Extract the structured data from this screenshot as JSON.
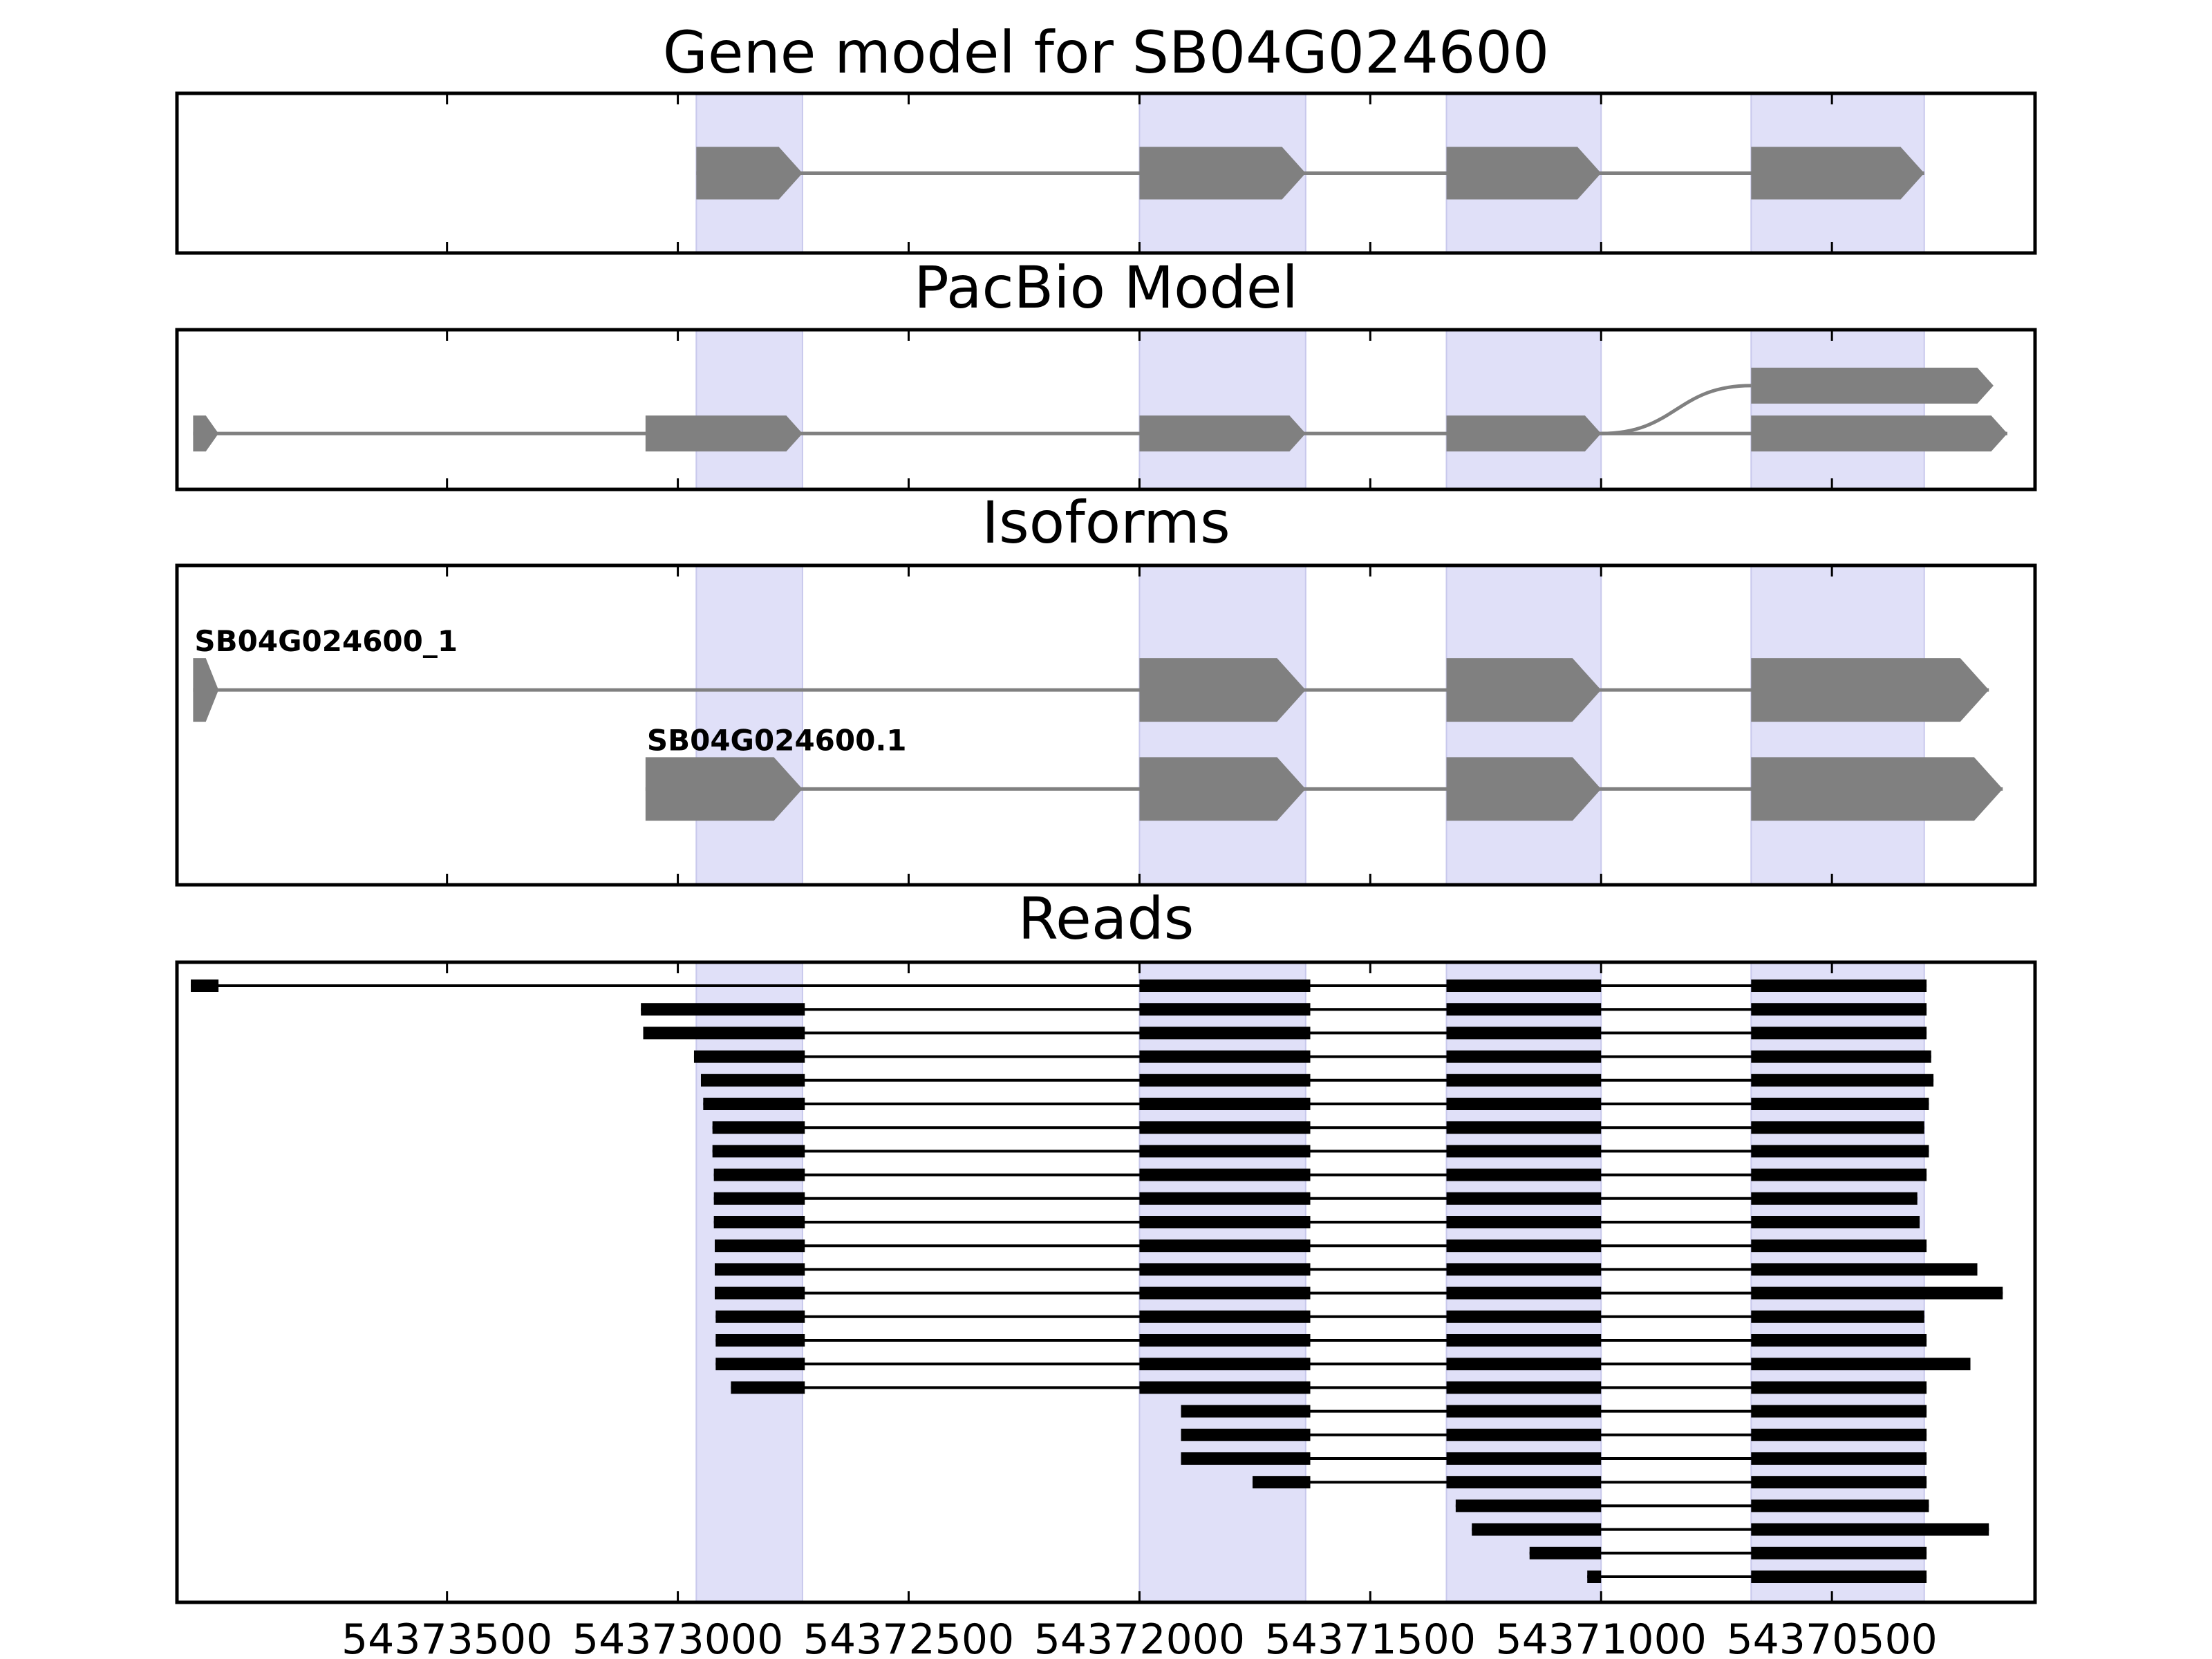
{
  "figure": {
    "colors": {
      "highlight": "#e0e0f8",
      "model": "#808080",
      "reads": "#000000",
      "frame": "#000000"
    }
  },
  "chart_data": {
    "type": "gene-model",
    "x_axis": {
      "reversed": true,
      "xlim": [
        54374085,
        54370060
      ],
      "ticks": [
        54373500,
        54373000,
        54372500,
        54372000,
        54371500,
        54371000,
        54370500
      ],
      "tick_labels": [
        "54373500",
        "54373000",
        "54372500",
        "54372000",
        "54371500",
        "54371000",
        "54370500"
      ]
    },
    "highlight_regions": [
      [
        54372960,
        54372730
      ],
      [
        54372000,
        54371640
      ],
      [
        54371335,
        54371000
      ],
      [
        54370675,
        54370300
      ]
    ],
    "panels": [
      {
        "title": "Gene model for SB04G024600",
        "tracks": [
          {
            "row": 0.5,
            "exons": [
              [
                54372960,
                54372730
              ],
              [
                54372000,
                54371640
              ],
              [
                54371335,
                54371000
              ],
              [
                54370675,
                54370300
              ]
            ]
          }
        ]
      },
      {
        "title": "PacBio Model",
        "tracks": [
          {
            "row": 0.35,
            "exons": [
              [
                54370675,
                54370150
              ]
            ],
            "branch_from": 54371000
          },
          {
            "row": 0.65,
            "exons": [
              [
                54374050,
                54373995
              ],
              [
                54373070,
                54372730
              ],
              [
                54372000,
                54371640
              ],
              [
                54371335,
                54371000
              ],
              [
                54370675,
                54370120
              ]
            ]
          }
        ]
      },
      {
        "title": "Isoforms",
        "tracks": [
          {
            "row": 0.39,
            "label": "SB04G024600_1",
            "exons": [
              [
                54374050,
                54373995
              ],
              [
                54372000,
                54371640
              ],
              [
                54371335,
                54371000
              ],
              [
                54370675,
                54370160
              ]
            ]
          },
          {
            "row": 0.7,
            "label": "SB04G024600.1",
            "exons": [
              [
                54373070,
                54372730
              ],
              [
                54372000,
                54371640
              ],
              [
                54371335,
                54371000
              ],
              [
                54370675,
                54370130
              ]
            ]
          }
        ]
      },
      {
        "title": "Reads",
        "reads": [
          [
            [
              54374055,
              54373995
            ],
            [
              54372000,
              54371630
            ],
            [
              54371335,
              54371000
            ],
            [
              54370675,
              54370295
            ]
          ],
          [
            [
              54373080,
              54372725
            ],
            [
              54372000,
              54371630
            ],
            [
              54371335,
              54371000
            ],
            [
              54370675,
              54370295
            ]
          ],
          [
            [
              54373075,
              54372725
            ],
            [
              54372000,
              54371630
            ],
            [
              54371335,
              54371000
            ],
            [
              54370675,
              54370295
            ]
          ],
          [
            [
              54372965,
              54372725
            ],
            [
              54372000,
              54371630
            ],
            [
              54371335,
              54371000
            ],
            [
              54370675,
              54370285
            ]
          ],
          [
            [
              54372950,
              54372725
            ],
            [
              54372000,
              54371630
            ],
            [
              54371335,
              54371000
            ],
            [
              54370675,
              54370280
            ]
          ],
          [
            [
              54372945,
              54372725
            ],
            [
              54372000,
              54371630
            ],
            [
              54371335,
              54371000
            ],
            [
              54370675,
              54370290
            ]
          ],
          [
            [
              54372925,
              54372725
            ],
            [
              54372000,
              54371630
            ],
            [
              54371335,
              54371000
            ],
            [
              54370675,
              54370300
            ]
          ],
          [
            [
              54372925,
              54372725
            ],
            [
              54372000,
              54371630
            ],
            [
              54371335,
              54371000
            ],
            [
              54370675,
              54370290
            ]
          ],
          [
            [
              54372922,
              54372725
            ],
            [
              54372000,
              54371630
            ],
            [
              54371335,
              54371000
            ],
            [
              54370675,
              54370295
            ]
          ],
          [
            [
              54372922,
              54372725
            ],
            [
              54372000,
              54371630
            ],
            [
              54371335,
              54371000
            ],
            [
              54370675,
              54370315
            ]
          ],
          [
            [
              54372922,
              54372725
            ],
            [
              54372000,
              54371630
            ],
            [
              54371335,
              54371000
            ],
            [
              54370675,
              54370310
            ]
          ],
          [
            [
              54372920,
              54372725
            ],
            [
              54372000,
              54371630
            ],
            [
              54371335,
              54371000
            ],
            [
              54370675,
              54370295
            ]
          ],
          [
            [
              54372920,
              54372725
            ],
            [
              54372000,
              54371630
            ],
            [
              54371335,
              54371000
            ],
            [
              54370675,
              54370185
            ]
          ],
          [
            [
              54372920,
              54372725
            ],
            [
              54372000,
              54371630
            ],
            [
              54371335,
              54371000
            ],
            [
              54370675,
              54370130
            ]
          ],
          [
            [
              54372918,
              54372725
            ],
            [
              54372000,
              54371630
            ],
            [
              54371335,
              54371000
            ],
            [
              54370675,
              54370300
            ]
          ],
          [
            [
              54372918,
              54372725
            ],
            [
              54372000,
              54371630
            ],
            [
              54371335,
              54371000
            ],
            [
              54370675,
              54370295
            ]
          ],
          [
            [
              54372918,
              54372725
            ],
            [
              54372000,
              54371630
            ],
            [
              54371335,
              54371000
            ],
            [
              54370675,
              54370200
            ]
          ],
          [
            [
              54372885,
              54372725
            ],
            [
              54372000,
              54371630
            ],
            [
              54371335,
              54371000
            ],
            [
              54370675,
              54370295
            ]
          ],
          [
            [
              54371910,
              54371630
            ],
            [
              54371335,
              54371000
            ],
            [
              54370675,
              54370295
            ]
          ],
          [
            [
              54371910,
              54371630
            ],
            [
              54371335,
              54371000
            ],
            [
              54370675,
              54370295
            ]
          ],
          [
            [
              54371910,
              54371630
            ],
            [
              54371335,
              54371000
            ],
            [
              54370675,
              54370295
            ]
          ],
          [
            [
              54371755,
              54371630
            ],
            [
              54371335,
              54371000
            ],
            [
              54370675,
              54370295
            ]
          ],
          [
            [
              54371315,
              54371000
            ],
            [
              54370675,
              54370290
            ]
          ],
          [
            [
              54371280,
              54371000
            ],
            [
              54370675,
              54370160
            ]
          ],
          [
            [
              54371155,
              54371000
            ],
            [
              54370675,
              54370295
            ]
          ],
          [
            [
              54371030,
              54371000
            ],
            [
              54370675,
              54370295
            ]
          ]
        ]
      }
    ]
  }
}
